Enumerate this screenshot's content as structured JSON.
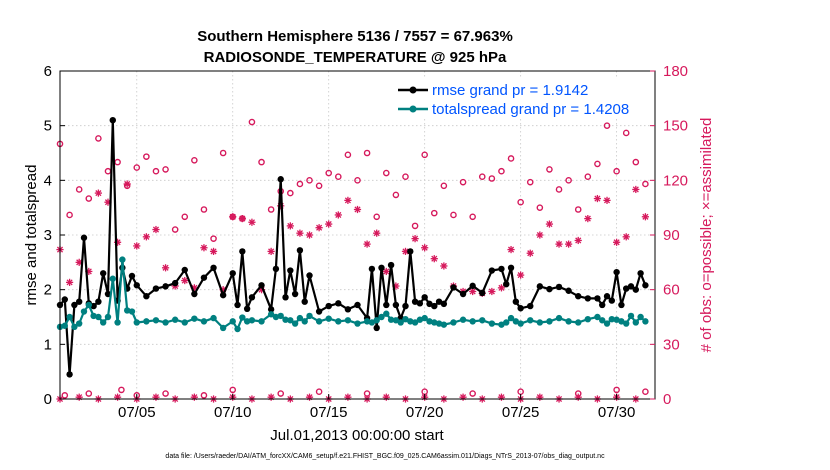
{
  "chart_data": {
    "type": "line",
    "title": "Southern Hemisphere 5136 / 7557 = 67.963%",
    "subtitle": "RADIOSONDE_TEMPERATURE @ 925 hPa",
    "xlabel": "Jul.01,2013 00:00:00 start",
    "ylabel_left": "rmse and totalspread",
    "ylabel_right": "# of obs: o=possible; ×=assimilated",
    "footnote": "data file: /Users/raeder/DAI/ATM_forcXX/CAM6_setup/f.e21.FHIST_BGC.f09_025.CAM6assim.011/Diags_NTrS_2013-07/obs_diag_output.nc",
    "xlim": [
      1.0,
      32.0
    ],
    "ylim_left": [
      0,
      6
    ],
    "ylim_right": [
      0,
      180
    ],
    "x_ticks": [
      5,
      10,
      15,
      20,
      25,
      30
    ],
    "x_tick_labels": [
      "07/05",
      "07/10",
      "07/15",
      "07/20",
      "07/25",
      "07/30"
    ],
    "y_ticks_left": [
      "0",
      "1",
      "2",
      "3",
      "4",
      "5",
      "6"
    ],
    "y_ticks_right": [
      "0",
      "30",
      "60",
      "90",
      "120",
      "150",
      "180"
    ],
    "colors": {
      "rmse": "#000000",
      "spread": "#008080",
      "obs": "#d6195c",
      "legend_text": "#0055ff"
    },
    "x": [
      1.0,
      1.25,
      1.5,
      1.75,
      2.0,
      2.25,
      2.5,
      2.75,
      3.0,
      3.25,
      3.5,
      3.75,
      4.0,
      4.25,
      4.5,
      4.75,
      5.0,
      5.5,
      6.0,
      6.5,
      7.0,
      7.5,
      8.0,
      8.5,
      9.0,
      9.5,
      10.0,
      10.25,
      10.5,
      10.75,
      11.0,
      11.5,
      12.0,
      12.25,
      12.5,
      12.75,
      13.0,
      13.25,
      13.5,
      13.75,
      14.0,
      14.5,
      15.0,
      15.5,
      16.0,
      16.5,
      17.0,
      17.25,
      17.5,
      17.75,
      18.0,
      18.25,
      18.5,
      18.75,
      19.0,
      19.25,
      19.5,
      19.75,
      20.0,
      20.25,
      20.5,
      20.75,
      21.0,
      21.5,
      22.0,
      22.5,
      23.0,
      23.5,
      24.0,
      24.25,
      24.5,
      24.75,
      25.0,
      25.5,
      26.0,
      26.5,
      27.0,
      27.5,
      28.0,
      28.5,
      29.0,
      29.25,
      29.5,
      29.75,
      30.0,
      30.25,
      30.5,
      30.75,
      31.0,
      31.25,
      31.5
    ],
    "series": [
      {
        "name": "rmse grand pr = 1.9142",
        "values": [
          1.72,
          1.82,
          0.45,
          1.72,
          1.78,
          2.95,
          1.75,
          1.7,
          1.78,
          2.3,
          1.92,
          5.1,
          1.8,
          2.4,
          2.02,
          2.25,
          2.08,
          1.88,
          2.02,
          2.06,
          2.12,
          2.36,
          1.92,
          2.22,
          2.4,
          1.9,
          2.3,
          1.72,
          2.7,
          1.65,
          1.86,
          2.08,
          1.64,
          2.38,
          4.02,
          1.86,
          2.35,
          1.92,
          2.72,
          1.78,
          2.26,
          1.6,
          1.7,
          1.75,
          1.64,
          1.72,
          1.48,
          2.38,
          1.3,
          2.4,
          1.72,
          2.45,
          1.72,
          1.48,
          1.7,
          2.7,
          1.78,
          1.75,
          1.86,
          1.74,
          1.7,
          1.78,
          1.74,
          2.04,
          1.92,
          2.07,
          1.94,
          2.35,
          2.38,
          2.1,
          2.4,
          1.78,
          1.66,
          1.7,
          2.06,
          2.01,
          2.05,
          1.98,
          1.88,
          1.84,
          1.84,
          1.72,
          1.88,
          1.8,
          2.32,
          1.72,
          2.02,
          2.06,
          2.0,
          2.3,
          2.08
        ]
      },
      {
        "name": "totalspread grand pr = 1.4208",
        "values": [
          1.32,
          1.34,
          1.5,
          1.32,
          1.38,
          1.6,
          1.72,
          1.52,
          1.5,
          1.4,
          1.5,
          2.2,
          1.4,
          2.55,
          1.62,
          1.6,
          1.4,
          1.42,
          1.44,
          1.4,
          1.45,
          1.4,
          1.47,
          1.42,
          1.48,
          1.3,
          1.42,
          1.28,
          1.49,
          1.42,
          1.44,
          1.42,
          1.55,
          1.5,
          1.52,
          1.45,
          1.44,
          1.38,
          1.48,
          1.42,
          1.52,
          1.42,
          1.47,
          1.42,
          1.44,
          1.38,
          1.42,
          1.4,
          1.44,
          1.5,
          1.56,
          1.45,
          1.44,
          1.4,
          1.46,
          1.42,
          1.4,
          1.45,
          1.48,
          1.42,
          1.4,
          1.38,
          1.36,
          1.4,
          1.45,
          1.42,
          1.44,
          1.38,
          1.36,
          1.4,
          1.48,
          1.42,
          1.38,
          1.44,
          1.4,
          1.42,
          1.48,
          1.42,
          1.4,
          1.46,
          1.5,
          1.44,
          1.38,
          1.46,
          1.45,
          1.42,
          1.38,
          1.52,
          1.4,
          1.5,
          1.42
        ]
      }
    ],
    "obs_possible_points": [
      [
        1.0,
        140
      ],
      [
        1.5,
        101
      ],
      [
        2.0,
        115
      ],
      [
        2.5,
        110
      ],
      [
        3.0,
        143
      ],
      [
        3.5,
        125
      ],
      [
        4.0,
        130
      ],
      [
        4.5,
        117
      ],
      [
        5.0,
        127
      ],
      [
        5.5,
        133
      ],
      [
        6.0,
        125
      ],
      [
        6.5,
        126
      ],
      [
        7.0,
        93
      ],
      [
        7.5,
        100
      ],
      [
        8.0,
        131
      ],
      [
        8.5,
        104
      ],
      [
        9.0,
        88
      ],
      [
        9.5,
        135
      ],
      [
        10.0,
        100
      ],
      [
        10.5,
        99
      ],
      [
        11.0,
        152
      ],
      [
        11.5,
        130
      ],
      [
        12.0,
        104
      ],
      [
        12.5,
        114
      ],
      [
        13.0,
        113
      ],
      [
        13.5,
        118
      ],
      [
        14.0,
        120
      ],
      [
        14.5,
        117
      ],
      [
        15.0,
        124
      ],
      [
        15.5,
        122
      ],
      [
        16.0,
        134
      ],
      [
        16.5,
        120
      ],
      [
        17.0,
        135
      ],
      [
        17.5,
        100
      ],
      [
        18.0,
        124
      ],
      [
        18.5,
        112
      ],
      [
        19.0,
        122
      ],
      [
        19.5,
        95
      ],
      [
        20.0,
        134
      ],
      [
        20.5,
        102
      ],
      [
        21.0,
        117
      ],
      [
        21.5,
        101
      ],
      [
        22.0,
        119
      ],
      [
        22.5,
        100
      ],
      [
        23.0,
        122
      ],
      [
        23.5,
        121
      ],
      [
        24.0,
        125
      ],
      [
        24.5,
        132
      ],
      [
        25.0,
        108
      ],
      [
        25.5,
        119
      ],
      [
        26.0,
        105
      ],
      [
        26.5,
        126
      ],
      [
        27.0,
        115
      ],
      [
        27.5,
        120
      ],
      [
        28.0,
        104
      ],
      [
        28.5,
        122
      ],
      [
        29.0,
        129
      ],
      [
        29.5,
        150
      ],
      [
        30.0,
        125
      ],
      [
        30.5,
        146
      ],
      [
        31.0,
        130
      ],
      [
        31.5,
        118
      ],
      [
        1.25,
        2
      ],
      [
        2.5,
        3
      ],
      [
        4.2,
        5
      ],
      [
        5.0,
        2
      ],
      [
        6.5,
        3
      ],
      [
        8.5,
        2
      ],
      [
        10.0,
        5
      ],
      [
        12.5,
        3
      ],
      [
        14.5,
        4
      ],
      [
        17.0,
        3
      ],
      [
        20.0,
        4
      ],
      [
        22.5,
        3
      ],
      [
        25.0,
        4
      ],
      [
        28.0,
        3
      ],
      [
        30.0,
        5
      ],
      [
        31.5,
        4
      ]
    ],
    "obs_assimilated_points": [
      [
        1.0,
        82
      ],
      [
        1.5,
        64
      ],
      [
        2.0,
        75
      ],
      [
        2.5,
        70
      ],
      [
        3.0,
        113
      ],
      [
        3.5,
        108
      ],
      [
        4.0,
        86
      ],
      [
        4.5,
        118
      ],
      [
        5.0,
        84
      ],
      [
        5.5,
        89
      ],
      [
        6.0,
        93
      ],
      [
        6.5,
        72
      ],
      [
        7.0,
        62
      ],
      [
        7.5,
        65
      ],
      [
        8.0,
        61
      ],
      [
        8.5,
        83
      ],
      [
        9.0,
        81
      ],
      [
        9.5,
        60
      ],
      [
        10.0,
        100
      ],
      [
        10.5,
        99
      ],
      [
        11.0,
        97
      ],
      [
        11.5,
        60
      ],
      [
        12.0,
        81
      ],
      [
        12.5,
        106
      ],
      [
        13.0,
        95
      ],
      [
        13.5,
        91
      ],
      [
        14.0,
        90
      ],
      [
        14.5,
        94
      ],
      [
        15.0,
        96
      ],
      [
        15.5,
        101
      ],
      [
        16.0,
        109
      ],
      [
        16.5,
        104
      ],
      [
        17.0,
        85
      ],
      [
        17.5,
        91
      ],
      [
        18.0,
        70
      ],
      [
        18.5,
        62
      ],
      [
        19.0,
        81
      ],
      [
        19.5,
        88
      ],
      [
        20.0,
        83
      ],
      [
        20.5,
        77
      ],
      [
        21.0,
        73
      ],
      [
        21.5,
        62
      ],
      [
        22.0,
        59
      ],
      [
        22.5,
        59
      ],
      [
        23.0,
        58
      ],
      [
        23.5,
        59
      ],
      [
        24.0,
        61
      ],
      [
        24.5,
        82
      ],
      [
        25.0,
        68
      ],
      [
        25.5,
        80
      ],
      [
        26.0,
        90
      ],
      [
        26.5,
        96
      ],
      [
        27.0,
        85
      ],
      [
        27.5,
        85
      ],
      [
        28.0,
        87
      ],
      [
        28.5,
        99
      ],
      [
        29.0,
        110
      ],
      [
        29.5,
        109
      ],
      [
        30.0,
        86
      ],
      [
        30.5,
        89
      ],
      [
        31.0,
        115
      ],
      [
        31.5,
        100
      ],
      [
        1.0,
        0
      ],
      [
        2.0,
        1
      ],
      [
        3.0,
        0
      ],
      [
        4.0,
        1
      ],
      [
        5.0,
        0
      ],
      [
        6.0,
        1
      ],
      [
        7.0,
        0
      ],
      [
        8.0,
        1
      ],
      [
        9.0,
        0
      ],
      [
        10.0,
        1
      ],
      [
        11.0,
        0
      ],
      [
        12.0,
        1
      ],
      [
        13.0,
        0
      ],
      [
        14.0,
        1
      ],
      [
        15.0,
        0
      ],
      [
        16.0,
        1
      ],
      [
        17.0,
        0
      ],
      [
        18.0,
        1
      ],
      [
        19.0,
        0
      ],
      [
        20.0,
        1
      ],
      [
        21.0,
        0
      ],
      [
        22.0,
        1
      ],
      [
        23.0,
        0
      ],
      [
        24.0,
        1
      ],
      [
        25.0,
        0
      ],
      [
        26.0,
        1
      ],
      [
        27.0,
        0
      ],
      [
        28.0,
        1
      ],
      [
        29.0,
        0
      ],
      [
        30.0,
        1
      ],
      [
        31.0,
        0
      ]
    ],
    "legend": [
      "rmse grand pr = 1.9142",
      "totalspread grand pr = 1.4208"
    ],
    "legend_placement": "top-right",
    "grid": true
  }
}
